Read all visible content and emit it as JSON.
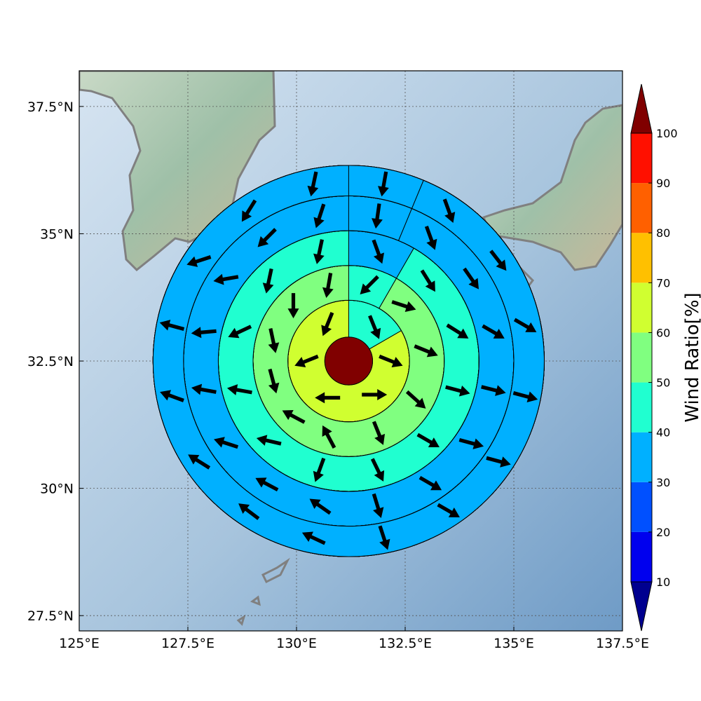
{
  "chart_data": {
    "type": "heatmap",
    "map": {
      "lon_range": [
        125,
        137.5
      ],
      "lat_range": [
        27.2,
        38.2
      ],
      "xticks": [
        {
          "value": 125,
          "label": "125°E"
        },
        {
          "value": 127.5,
          "label": "127.5°E"
        },
        {
          "value": 130,
          "label": "130°E"
        },
        {
          "value": 132.5,
          "label": "132.5°E"
        },
        {
          "value": 135,
          "label": "135°E"
        },
        {
          "value": 137.5,
          "label": "137.5°E"
        }
      ],
      "yticks": [
        {
          "value": 27.5,
          "label": "27.5°N"
        },
        {
          "value": 30,
          "label": "30°N"
        },
        {
          "value": 32.5,
          "label": "32.5°N"
        },
        {
          "value": 35,
          "label": "35°N"
        },
        {
          "value": 37.5,
          "label": "37.5°N"
        }
      ],
      "grid": true,
      "basemap": "shaded relief with coastlines (Korea, Kyushu, Shikoku, Honshu)"
    },
    "center": {
      "lon": 131.2,
      "lat": 32.5,
      "value": 100
    },
    "ring_edges_deg": [
      0.55,
      1.4,
      2.2,
      3.0,
      3.8,
      4.5
    ],
    "rings": [
      {
        "angles": [
          90,
          165,
          195,
          270,
          330,
          30
        ],
        "values": [
          62,
          62,
          62,
          62,
          42,
          62
        ],
        "arrows_dir": [
          0,
          338,
          292,
          248,
          202,
          180
        ]
      },
      {
        "angles": [
          90,
          135,
          165,
          210,
          240,
          270,
          300,
          330,
          360,
          30,
          60
        ],
        "values": [
          45,
          55,
          55,
          55,
          55,
          55,
          45,
          40,
          35,
          45,
          55
        ],
        "arrows_dir": [
          292,
          318,
          338,
          342,
          225,
          260,
          270,
          282,
          285,
          152,
          118
        ]
      },
      {
        "angles": [
          90,
          120,
          150,
          180,
          210,
          240,
          270,
          300,
          330,
          360,
          30,
          60
        ],
        "values": [
          45,
          40,
          35,
          45,
          45,
          40,
          30,
          30,
          25,
          25,
          35,
          40
        ],
        "arrows_dir": [
          296,
          330,
          345,
          328,
          302,
          290,
          258,
          258,
          205,
          170,
          167,
          250
        ]
      },
      {
        "angles": [
          90,
          112.5,
          135,
          157.5,
          180,
          202.5,
          225,
          247.5,
          270,
          292.5,
          315,
          337.5,
          360,
          22.5,
          45,
          67.5
        ],
        "values": [
          35,
          35,
          35,
          45,
          35,
          35,
          45,
          35,
          30,
          25,
          15,
          15,
          20,
          35,
          35,
          35
        ],
        "arrows_dir": [
          287,
          330,
          345,
          346,
          330,
          305,
          290,
          262,
          252,
          225,
          190,
          185,
          170,
          162,
          152,
          145
        ]
      },
      {
        "angles": [
          90,
          112.5,
          135,
          157.5,
          180,
          202.5,
          225,
          247.5,
          270,
          292.5,
          315,
          337.5,
          360,
          22.5,
          45,
          67.5
        ],
        "values": [
          35,
          35,
          35,
          35,
          35,
          35,
          35,
          35,
          25,
          20,
          15,
          15,
          25,
          30,
          30,
          35
        ],
        "arrows_dir": [
          288,
          330,
          345,
          345,
          330,
          308,
          290,
          260,
          258,
          238,
          198,
          165,
          160,
          148,
          143,
          155
        ]
      },
      {
        "angles": [
          90,
          112.5,
          135,
          157.5,
          180,
          202.5,
          225,
          247.5,
          270,
          292.5,
          315,
          337.5,
          360,
          22.5,
          45,
          67.5
        ],
        "values": [
          35,
          25,
          35,
          35,
          35,
          35,
          25,
          25,
          25,
          15,
          15,
          15,
          15,
          25,
          25,
          25
        ],
        "arrows_dir": [
          287,
          330,
          345,
          348,
          330,
          310,
          295,
          262,
          260,
          252,
          228,
          205,
          175,
          163,
          148,
          138
        ]
      }
    ],
    "arrow_dir_note": "direction degrees: 0 = east, counter-clockwise positive",
    "colorbar": {
      "label": "Wind Ratio[%]",
      "levels": [
        0,
        10,
        20,
        30,
        40,
        50,
        60,
        70,
        80,
        90,
        100,
        110
      ],
      "tick_labels": [
        "10",
        "20",
        "30",
        "40",
        "50",
        "60",
        "70",
        "80",
        "90",
        "100"
      ],
      "colors": [
        "#00008f",
        "#0000ee",
        "#0050ff",
        "#00b0ff",
        "#20ffd0",
        "#80ff80",
        "#d0ff30",
        "#ffc000",
        "#ff6000",
        "#ff1000",
        "#800000"
      ],
      "extend": "both"
    }
  }
}
